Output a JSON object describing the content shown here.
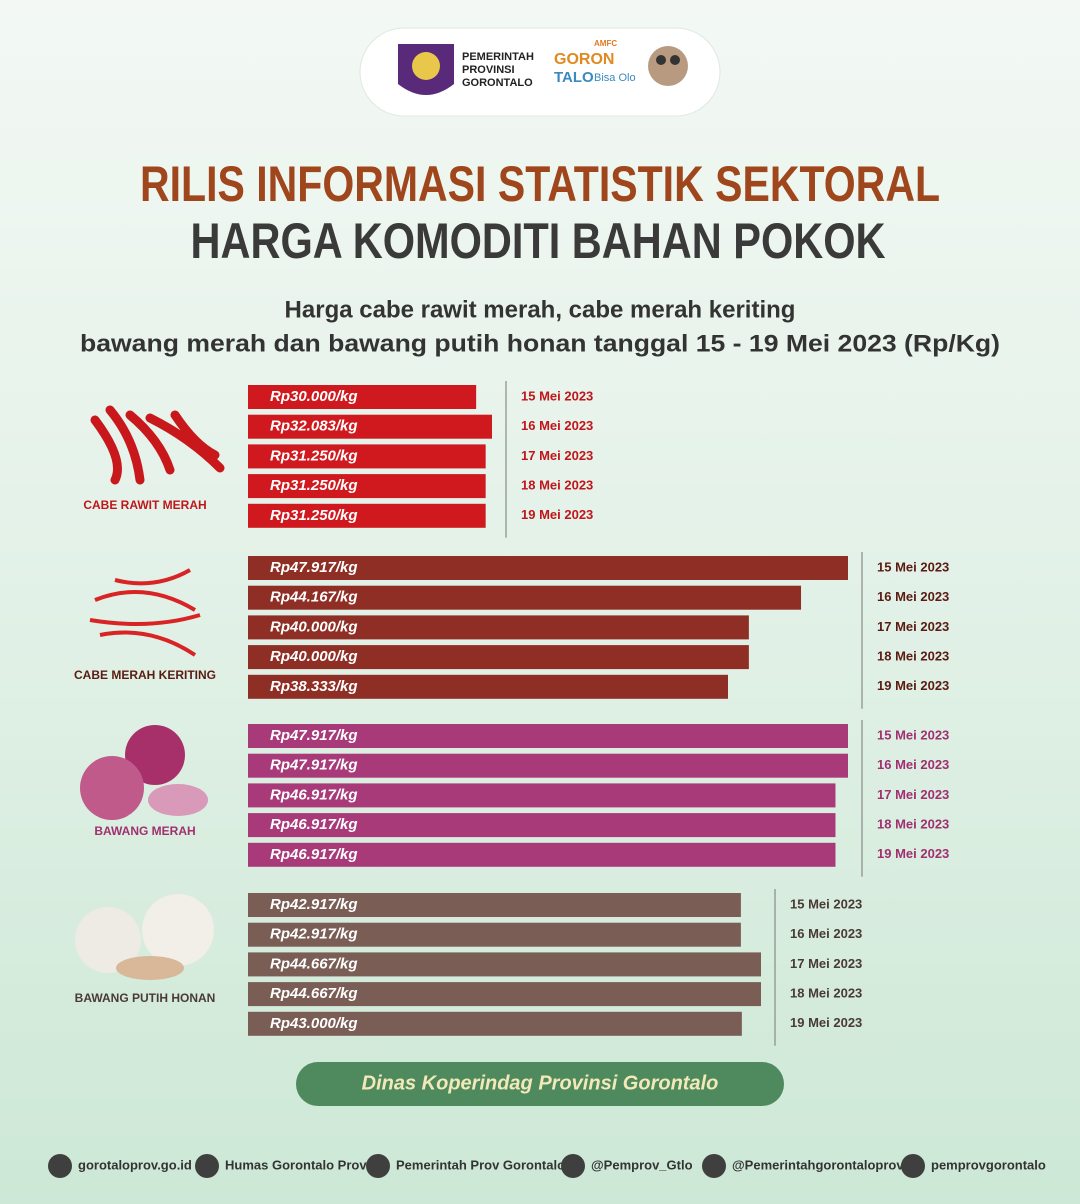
{
  "header": {
    "org": [
      "PEMERINTAH",
      "PROVINSI",
      "GORONTALO"
    ],
    "event": [
      "AMFC",
      "GORON",
      "TALO",
      "Bisa Olo"
    ]
  },
  "title": [
    "RILIS INFORMASI STATISTIK SEKTORAL",
    "HARGA KOMODITI BAHAN POKOK"
  ],
  "subtitle": [
    "Harga cabe rawit merah, cabe merah keriting",
    "bawang merah dan bawang putih honan tanggal 15 - 19 Mei 2023 (Rp/Kg)"
  ],
  "chart_data": [
    {
      "type": "bar",
      "orientation": "horizontal",
      "title": "CABE RAWIT MERAH",
      "categories": [
        "15 Mei 2023",
        "16 Mei 2023",
        "17 Mei 2023",
        "18 Mei 2023",
        "19 Mei 2023"
      ],
      "values": [
        30000,
        32083,
        31250,
        31250,
        31250
      ],
      "value_labels": [
        "Rp30.000/kg",
        "Rp32.083/kg",
        "Rp31.250/kg",
        "Rp31.250/kg",
        "Rp31.250/kg"
      ],
      "color": "#d0191e",
      "category_color": "#c0161b"
    },
    {
      "type": "bar",
      "orientation": "horizontal",
      "title": "CABE MERAH KERITING",
      "categories": [
        "15 Mei 2023",
        "16 Mei 2023",
        "17 Mei 2023",
        "18 Mei 2023",
        "19 Mei 2023"
      ],
      "values": [
        47917,
        44167,
        40000,
        40000,
        38333
      ],
      "value_labels": [
        "Rp47.917/kg",
        "Rp44.167/kg",
        "Rp40.000/kg",
        "Rp40.000/kg",
        "Rp38.333/kg"
      ],
      "color": "#8f2e24",
      "category_color": "#5a1c12"
    },
    {
      "type": "bar",
      "orientation": "horizontal",
      "title": "BAWANG MERAH",
      "categories": [
        "15 Mei 2023",
        "16 Mei 2023",
        "17 Mei 2023",
        "18 Mei 2023",
        "19 Mei 2023"
      ],
      "values": [
        47917,
        47917,
        46917,
        46917,
        46917
      ],
      "value_labels": [
        "Rp47.917/kg",
        "Rp47.917/kg",
        "Rp46.917/kg",
        "Rp46.917/kg",
        "Rp46.917/kg"
      ],
      "color": "#a83a7a",
      "category_color": "#a03070"
    },
    {
      "type": "bar",
      "orientation": "horizontal",
      "title": "BAWANG PUTIH HONAN",
      "categories": [
        "15 Mei 2023",
        "16 Mei 2023",
        "17 Mei 2023",
        "18 Mei 2023",
        "19 Mei 2023"
      ],
      "values": [
        42917,
        42917,
        44667,
        44667,
        43000
      ],
      "value_labels": [
        "Rp42.917/kg",
        "Rp42.917/kg",
        "Rp44.667/kg",
        "Rp44.667/kg",
        "Rp43.000/kg"
      ],
      "color": "#7a5e55",
      "category_color": "#4a3a35"
    }
  ],
  "footer": "Dinas Koperindag Provinsi Gorontalo",
  "social": [
    "gorotaloprov.go.id",
    "Humas Gorontalo Prov",
    "Pemerintah Prov Gorontalo",
    "@Pemprov_Gtlo",
    "@Pemerintahgorontaloprov",
    "pemprovgorontalo"
  ]
}
